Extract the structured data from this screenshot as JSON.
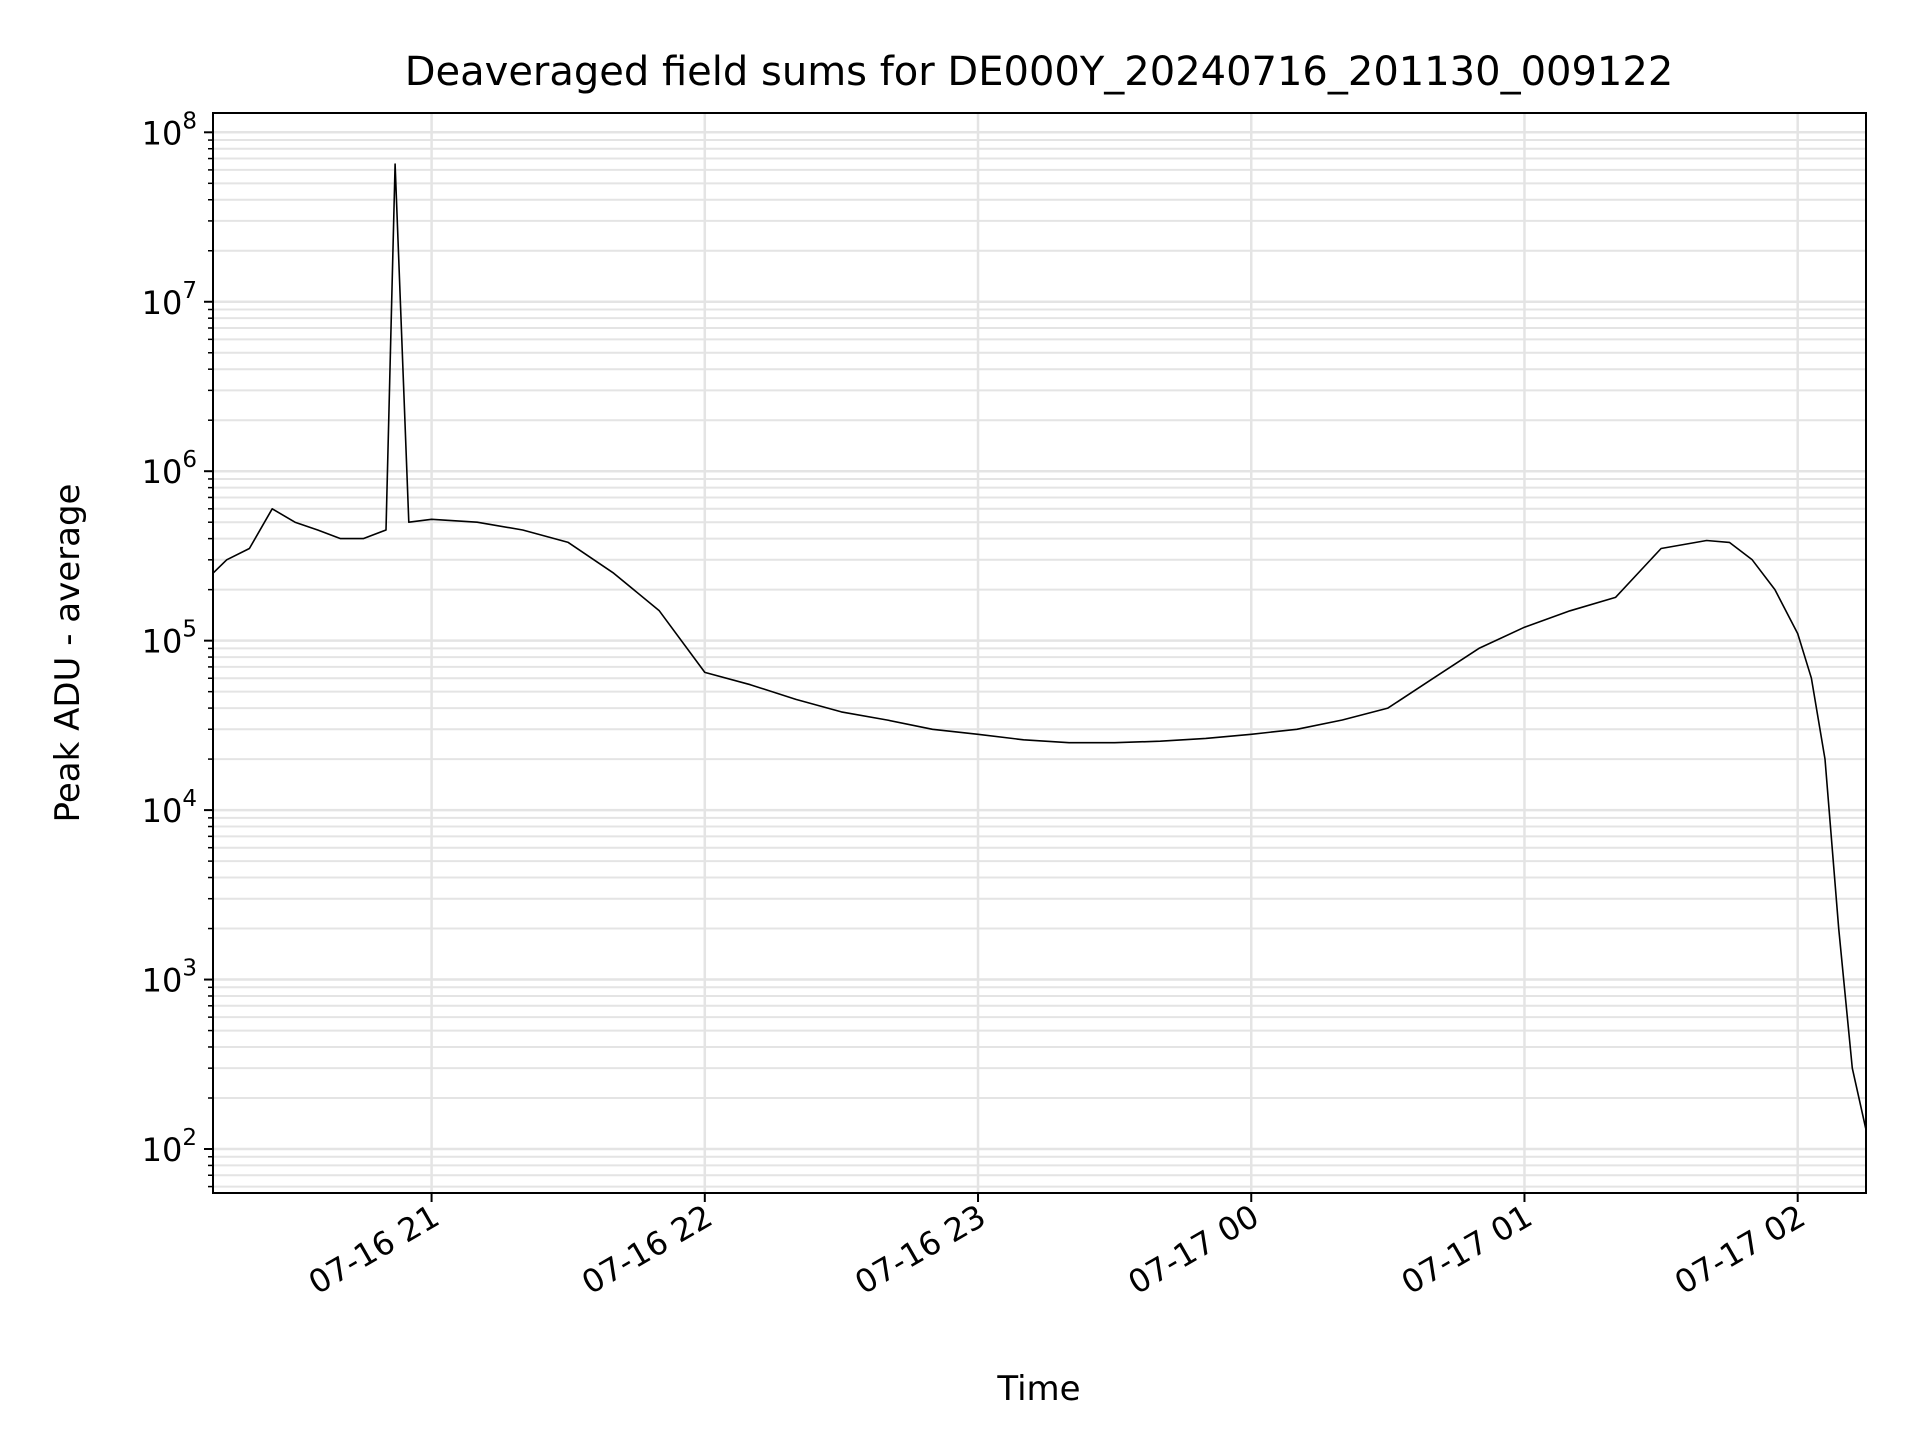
{
  "chart_data": {
    "type": "line",
    "title": "Deaveraged field sums for DE000Y_20240716_201130_009122",
    "xlabel": "Time",
    "ylabel": "Peak ADU - average",
    "yscale": "log",
    "ylim": [
      55,
      130000000
    ],
    "xlim": [
      "2024-07-16 20:12",
      "2024-07-17 02:15"
    ],
    "x_ticks": [
      {
        "value": "2024-07-16 21:00",
        "label": "07-16 21"
      },
      {
        "value": "2024-07-16 22:00",
        "label": "07-16 22"
      },
      {
        "value": "2024-07-16 23:00",
        "label": "07-16 23"
      },
      {
        "value": "2024-07-17 00:00",
        "label": "07-17 00"
      },
      {
        "value": "2024-07-17 01:00",
        "label": "07-17 01"
      },
      {
        "value": "2024-07-17 02:00",
        "label": "07-17 02"
      }
    ],
    "y_ticks": [
      {
        "value": 100,
        "base": "10",
        "exp": "2"
      },
      {
        "value": 1000,
        "base": "10",
        "exp": "3"
      },
      {
        "value": 10000,
        "base": "10",
        "exp": "4"
      },
      {
        "value": 100000,
        "base": "10",
        "exp": "5"
      },
      {
        "value": 1000000,
        "base": "10",
        "exp": "6"
      },
      {
        "value": 10000000,
        "base": "10",
        "exp": "7"
      },
      {
        "value": 100000000,
        "base": "10",
        "exp": "8"
      }
    ],
    "grid": true,
    "line_color": "#000000",
    "grid_color": "#e4e4e4",
    "series": [
      {
        "x": [
          "2024-07-16 20:12",
          "2024-07-16 20:15",
          "2024-07-16 20:20",
          "2024-07-16 20:25",
          "2024-07-16 20:30",
          "2024-07-16 20:35",
          "2024-07-16 20:40",
          "2024-07-16 20:45",
          "2024-07-16 20:50",
          "2024-07-16 20:52",
          "2024-07-16 20:55",
          "2024-07-16 21:00",
          "2024-07-16 21:10",
          "2024-07-16 21:20",
          "2024-07-16 21:30",
          "2024-07-16 21:40",
          "2024-07-16 21:50",
          "2024-07-16 22:00",
          "2024-07-16 22:10",
          "2024-07-16 22:20",
          "2024-07-16 22:30",
          "2024-07-16 22:40",
          "2024-07-16 22:50",
          "2024-07-16 23:00",
          "2024-07-16 23:10",
          "2024-07-16 23:20",
          "2024-07-16 23:30",
          "2024-07-16 23:40",
          "2024-07-16 23:50",
          "2024-07-17 00:00",
          "2024-07-17 00:10",
          "2024-07-17 00:20",
          "2024-07-17 00:30",
          "2024-07-17 00:40",
          "2024-07-17 00:50",
          "2024-07-17 01:00",
          "2024-07-17 01:10",
          "2024-07-17 01:20",
          "2024-07-17 01:30",
          "2024-07-17 01:40",
          "2024-07-17 01:45",
          "2024-07-17 01:50",
          "2024-07-17 01:55",
          "2024-07-17 02:00",
          "2024-07-17 02:03",
          "2024-07-17 02:06",
          "2024-07-17 02:09",
          "2024-07-17 02:12",
          "2024-07-17 02:15"
        ],
        "values": [
          250000,
          300000,
          350000,
          600000,
          500000,
          450000,
          400000,
          400000,
          450000,
          65000000,
          500000,
          520000,
          500000,
          450000,
          380000,
          250000,
          150000,
          65000,
          55000,
          45000,
          38000,
          34000,
          30000,
          28000,
          26000,
          25000,
          25000,
          25500,
          26500,
          28000,
          30000,
          34000,
          40000,
          60000,
          90000,
          120000,
          150000,
          180000,
          350000,
          390000,
          380000,
          300000,
          200000,
          110000,
          60000,
          20000,
          2000,
          300,
          130
        ]
      }
    ]
  }
}
